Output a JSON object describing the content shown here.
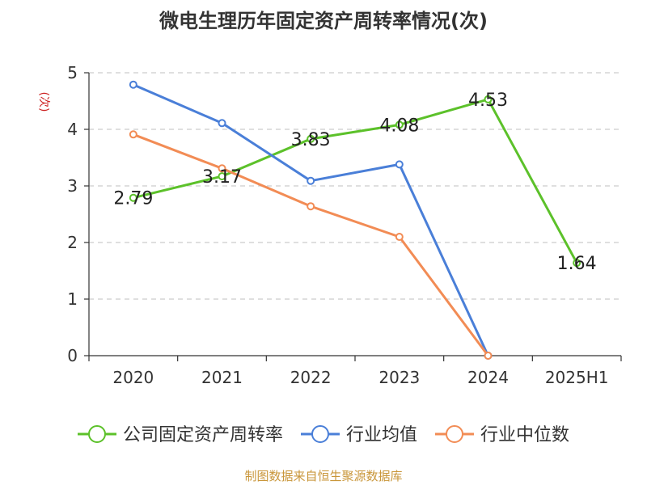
{
  "chart_data": {
    "type": "line",
    "title": "微电生理历年固定资产周转率情况(次)",
    "ylabel": "(次)",
    "xlabel": "",
    "categories": [
      "2020",
      "2021",
      "2022",
      "2023",
      "2024",
      "2025H1"
    ],
    "ylim": [
      0,
      5
    ],
    "yticks": [
      0,
      1,
      2,
      3,
      4,
      5
    ],
    "grid": true,
    "legend_position": "bottom",
    "series": [
      {
        "name": "公司固定资产周转率",
        "color": "#5cc12a",
        "values": [
          2.79,
          3.17,
          3.83,
          4.08,
          4.53,
          1.64
        ],
        "data_labels": [
          "2.79",
          "3.17",
          "3.83",
          "4.08",
          "4.53",
          "1.64"
        ]
      },
      {
        "name": "行业均值",
        "color": "#4a7fd8",
        "values": [
          4.79,
          4.11,
          3.09,
          3.38,
          0.0,
          null
        ]
      },
      {
        "name": "行业中位数",
        "color": "#f28c55",
        "values": [
          3.91,
          3.31,
          2.64,
          2.1,
          0.0,
          null
        ]
      }
    ]
  },
  "footer": {
    "source": "制图数据来自恒生聚源数据库",
    "color": "#c9963a"
  },
  "ylabel_color": "#cc2222"
}
